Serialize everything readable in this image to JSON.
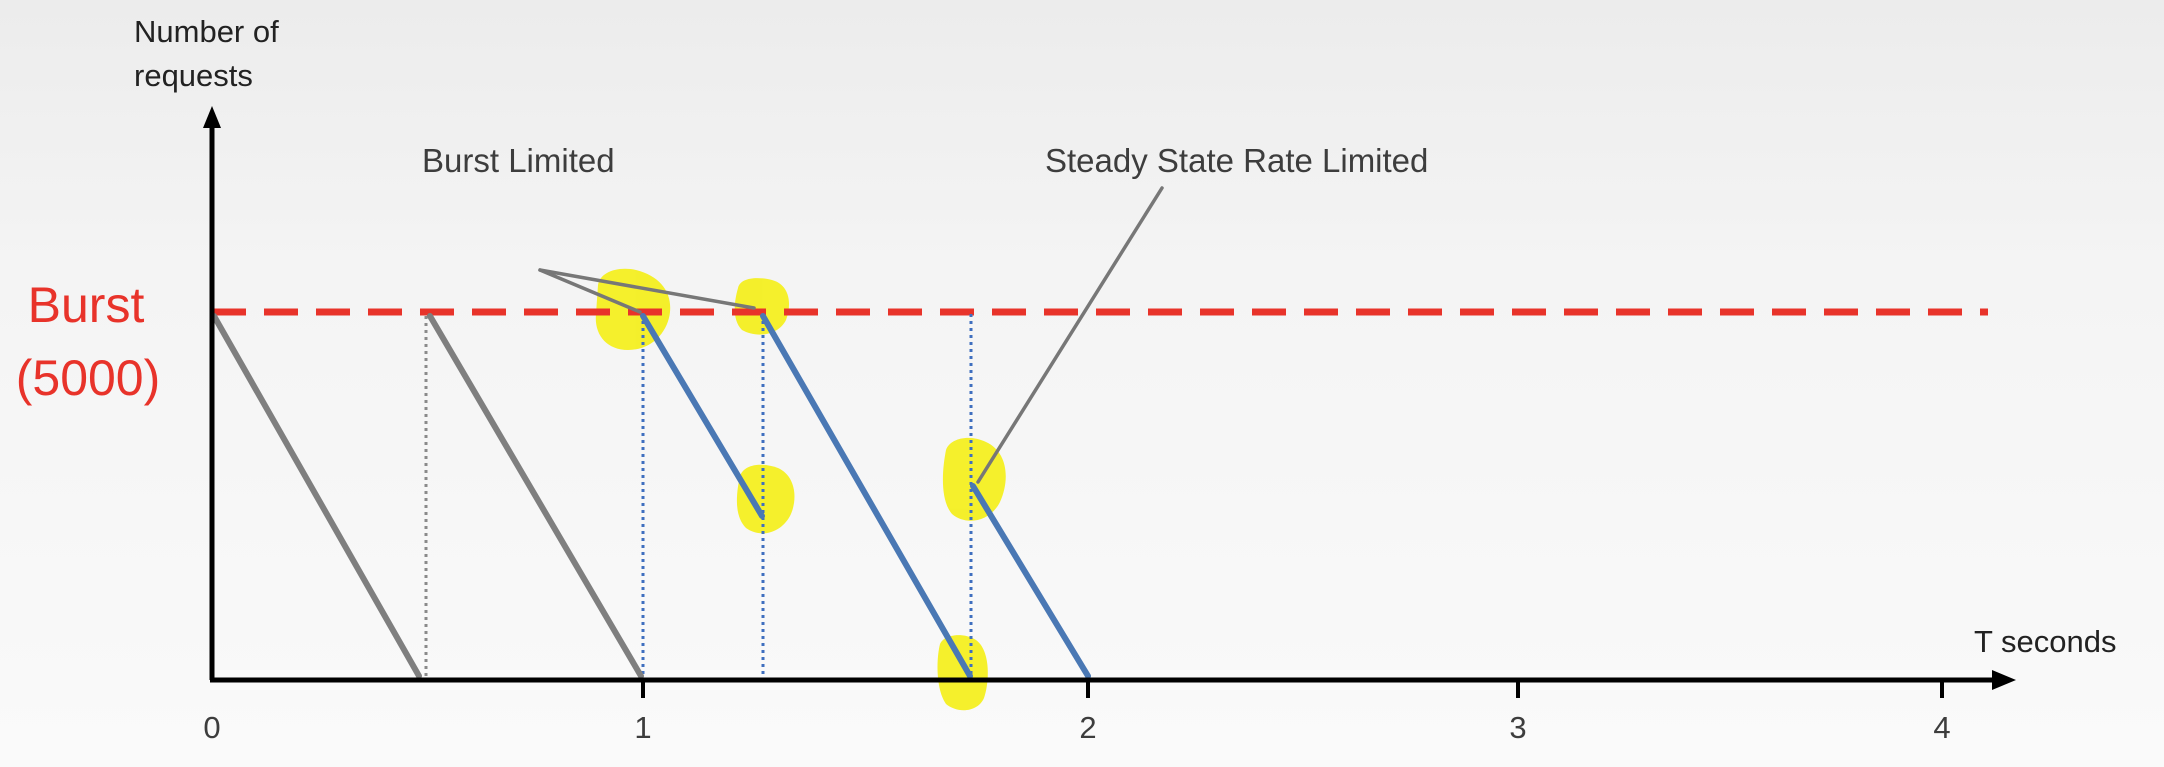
{
  "y_axis": {
    "label_line1": "Number of",
    "label_line2": "requests"
  },
  "x_axis": {
    "label": "T seconds",
    "ticks": [
      "0",
      "1",
      "2",
      "3",
      "4"
    ]
  },
  "burst": {
    "label": "Burst",
    "value_label": "(5000)",
    "color": "#e8332a"
  },
  "annotations": {
    "burst_limited": "Burst Limited",
    "steady_state": "Steady State Rate Limited"
  },
  "colors": {
    "axis": "#000000",
    "gray_line": "#7f7f7f",
    "blue_line": "#4a78b4",
    "dotted_blue": "#3f6fbf",
    "dotted_gray": "#8a8a8a",
    "highlight": "#f4ef1a",
    "callout": "#777777",
    "text": "#3d3d3d"
  }
}
